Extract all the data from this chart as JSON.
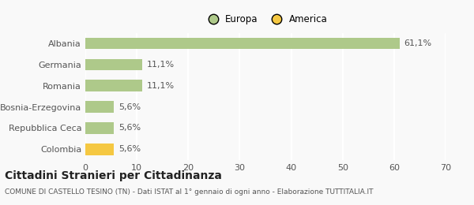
{
  "categories": [
    "Albania",
    "Germania",
    "Romania",
    "Bosnia-Erzegovina",
    "Repubblica Ceca",
    "Colombia"
  ],
  "values": [
    61.1,
    11.1,
    11.1,
    5.6,
    5.6,
    5.6
  ],
  "labels": [
    "61,1%",
    "11,1%",
    "11,1%",
    "5,6%",
    "5,6%",
    "5,6%"
  ],
  "colors": [
    "#aec98a",
    "#aec98a",
    "#aec98a",
    "#aec98a",
    "#aec98a",
    "#f5c842"
  ],
  "legend": [
    {
      "label": "Europa",
      "color": "#aec98a"
    },
    {
      "label": "America",
      "color": "#f5c842"
    }
  ],
  "xlim": [
    0,
    70
  ],
  "xticks": [
    0,
    10,
    20,
    30,
    40,
    50,
    60,
    70
  ],
  "title": "Cittadini Stranieri per Cittadinanza",
  "subtitle": "COMUNE DI CASTELLO TESINO (TN) - Dati ISTAT al 1° gennaio di ogni anno - Elaborazione TUTTITALIA.IT",
  "background_color": "#f9f9f9",
  "grid_color": "#ffffff",
  "bar_height": 0.55,
  "title_fontsize": 10,
  "subtitle_fontsize": 6.5,
  "label_fontsize": 8,
  "tick_fontsize": 8,
  "legend_fontsize": 8.5
}
